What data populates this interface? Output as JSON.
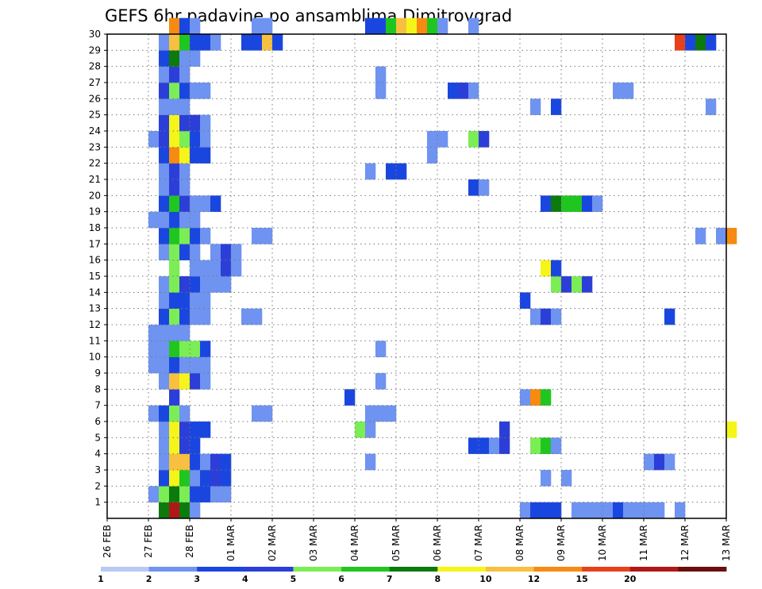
{
  "chart_data": {
    "type": "heatmap",
    "title": "GEFS 6hr padavine po ansamblima Dimitrovgrad",
    "xlabel": "",
    "ylabel": "",
    "x_tick_labels": [
      "26 FEB",
      "27 FEB",
      "28 FEB",
      "01 MAR",
      "02 MAR",
      "03 MAR",
      "04 MAR",
      "05 MAR",
      "06 MAR",
      "07 MAR",
      "08 MAR",
      "09 MAR",
      "10 MAR",
      "11 MAR",
      "12 MAR",
      "13 MAR"
    ],
    "x_range_days": [
      0,
      15
    ],
    "y_tick_labels": [
      "1",
      "2",
      "3",
      "4",
      "5",
      "6",
      "7",
      "8",
      "9",
      "10",
      "11",
      "12",
      "13",
      "14",
      "15",
      "16",
      "17",
      "18",
      "19",
      "20",
      "21",
      "22",
      "23",
      "24",
      "25",
      "26",
      "27",
      "28",
      "29",
      "30"
    ],
    "y_range": [
      0,
      30
    ],
    "grid": true,
    "legend_placement": "bottom",
    "levels": [
      "1",
      "2",
      "3",
      "4",
      "5",
      "6",
      "7",
      "8",
      "10",
      "12",
      "15",
      "20"
    ],
    "level_colors": [
      "#b9c8f5",
      "#6f93f0",
      "#1a46e0",
      "#2c3ed8",
      "#7bee55",
      "#20c620",
      "#0d7a0d",
      "#f5f51a",
      "#f7c040",
      "#f78a10",
      "#e8401a",
      "#b01818",
      "#6a0e0e"
    ],
    "cells": [
      [
        1.25,
        0,
        6
      ],
      [
        1.5,
        0,
        11
      ],
      [
        1.75,
        0,
        6
      ],
      [
        2.0,
        0,
        1
      ],
      [
        10.0,
        0,
        1
      ],
      [
        10.25,
        0,
        2
      ],
      [
        10.5,
        0,
        2
      ],
      [
        10.75,
        0,
        2
      ],
      [
        11.25,
        0,
        1
      ],
      [
        11.5,
        0,
        1
      ],
      [
        11.75,
        0,
        1
      ],
      [
        12.0,
        0,
        1
      ],
      [
        12.25,
        0,
        2
      ],
      [
        12.5,
        0,
        1
      ],
      [
        12.75,
        0,
        1
      ],
      [
        13.0,
        0,
        1
      ],
      [
        13.25,
        0,
        1
      ],
      [
        13.75,
        0,
        1
      ],
      [
        1.0,
        1,
        1
      ],
      [
        1.25,
        1,
        4
      ],
      [
        1.5,
        1,
        6
      ],
      [
        1.75,
        1,
        4
      ],
      [
        2.0,
        1,
        2
      ],
      [
        2.25,
        1,
        2
      ],
      [
        2.5,
        1,
        1
      ],
      [
        2.75,
        1,
        1
      ],
      [
        1.25,
        2,
        2
      ],
      [
        1.5,
        2,
        7
      ],
      [
        1.75,
        2,
        5
      ],
      [
        2.0,
        2,
        1
      ],
      [
        2.25,
        2,
        2
      ],
      [
        2.5,
        2,
        3
      ],
      [
        2.75,
        2,
        2
      ],
      [
        10.5,
        2,
        1
      ],
      [
        11.0,
        2,
        1
      ],
      [
        1.25,
        3,
        1
      ],
      [
        1.5,
        3,
        8
      ],
      [
        1.75,
        3,
        8
      ],
      [
        2.0,
        3,
        2
      ],
      [
        2.25,
        3,
        1
      ],
      [
        2.5,
        3,
        3
      ],
      [
        2.75,
        3,
        2
      ],
      [
        6.25,
        3,
        1
      ],
      [
        13.0,
        3,
        1
      ],
      [
        13.25,
        3,
        3
      ],
      [
        13.5,
        3,
        1
      ],
      [
        1.25,
        4,
        1
      ],
      [
        1.5,
        4,
        7
      ],
      [
        1.75,
        4,
        3
      ],
      [
        2.0,
        4,
        2
      ],
      [
        8.75,
        4,
        2
      ],
      [
        9.0,
        4,
        2
      ],
      [
        9.25,
        4,
        1
      ],
      [
        9.5,
        4,
        3
      ],
      [
        10.25,
        4,
        4
      ],
      [
        10.5,
        4,
        5
      ],
      [
        10.75,
        4,
        1
      ],
      [
        1.25,
        5,
        1
      ],
      [
        1.5,
        5,
        7
      ],
      [
        1.75,
        5,
        3
      ],
      [
        2.0,
        5,
        2
      ],
      [
        2.25,
        5,
        2
      ],
      [
        6.0,
        5,
        4
      ],
      [
        6.25,
        5,
        1
      ],
      [
        9.5,
        5,
        3
      ],
      [
        15.0,
        5,
        7
      ],
      [
        1.0,
        6,
        1
      ],
      [
        1.25,
        6,
        2
      ],
      [
        1.5,
        6,
        4
      ],
      [
        1.75,
        6,
        1
      ],
      [
        3.5,
        6,
        1
      ],
      [
        3.75,
        6,
        1
      ],
      [
        6.25,
        6,
        1
      ],
      [
        6.5,
        6,
        1
      ],
      [
        6.75,
        6,
        1
      ],
      [
        1.5,
        7,
        3
      ],
      [
        5.75,
        7,
        2
      ],
      [
        10.0,
        7,
        1
      ],
      [
        10.25,
        7,
        9
      ],
      [
        10.5,
        7,
        5
      ],
      [
        1.25,
        8,
        1
      ],
      [
        1.5,
        8,
        8
      ],
      [
        1.75,
        8,
        7
      ],
      [
        2.0,
        8,
        3
      ],
      [
        2.25,
        8,
        1
      ],
      [
        6.5,
        8,
        1
      ],
      [
        1.0,
        9,
        1
      ],
      [
        1.25,
        9,
        1
      ],
      [
        1.5,
        9,
        2
      ],
      [
        1.75,
        9,
        1
      ],
      [
        2.0,
        9,
        1
      ],
      [
        2.25,
        9,
        1
      ],
      [
        1.0,
        10,
        1
      ],
      [
        1.25,
        10,
        1
      ],
      [
        1.5,
        10,
        5
      ],
      [
        1.75,
        10,
        4
      ],
      [
        2.0,
        10,
        4
      ],
      [
        2.25,
        10,
        2
      ],
      [
        6.5,
        10,
        1
      ],
      [
        1.0,
        11,
        1
      ],
      [
        1.25,
        11,
        1
      ],
      [
        1.5,
        11,
        1
      ],
      [
        1.75,
        11,
        1
      ],
      [
        1.25,
        12,
        2
      ],
      [
        1.5,
        12,
        4
      ],
      [
        1.75,
        12,
        2
      ],
      [
        2.0,
        12,
        1
      ],
      [
        2.25,
        12,
        1
      ],
      [
        3.25,
        12,
        1
      ],
      [
        3.5,
        12,
        1
      ],
      [
        10.25,
        12,
        1
      ],
      [
        10.5,
        12,
        3
      ],
      [
        10.75,
        12,
        1
      ],
      [
        13.5,
        12,
        2
      ],
      [
        1.25,
        13,
        1
      ],
      [
        1.5,
        13,
        2
      ],
      [
        1.75,
        13,
        2
      ],
      [
        2.0,
        13,
        1
      ],
      [
        2.25,
        13,
        1
      ],
      [
        10.0,
        13,
        2
      ],
      [
        1.25,
        14,
        1
      ],
      [
        1.5,
        14,
        4
      ],
      [
        1.75,
        14,
        3
      ],
      [
        2.0,
        14,
        2
      ],
      [
        2.25,
        14,
        1
      ],
      [
        2.5,
        14,
        1
      ],
      [
        2.75,
        14,
        1
      ],
      [
        10.75,
        14,
        4
      ],
      [
        11.0,
        14,
        3
      ],
      [
        11.25,
        14,
        4
      ],
      [
        11.5,
        14,
        3
      ],
      [
        1.5,
        15,
        4
      ],
      [
        2.0,
        15,
        1
      ],
      [
        2.25,
        15,
        1
      ],
      [
        2.5,
        15,
        1
      ],
      [
        2.75,
        15,
        3
      ],
      [
        3.0,
        15,
        1
      ],
      [
        10.5,
        15,
        7
      ],
      [
        10.75,
        15,
        2
      ],
      [
        1.25,
        16,
        1
      ],
      [
        1.5,
        16,
        4
      ],
      [
        1.75,
        16,
        2
      ],
      [
        2.0,
        16,
        1
      ],
      [
        2.5,
        16,
        1
      ],
      [
        2.75,
        16,
        3
      ],
      [
        3.0,
        16,
        1
      ],
      [
        1.25,
        17,
        2
      ],
      [
        1.5,
        17,
        5
      ],
      [
        1.75,
        17,
        4
      ],
      [
        2.0,
        17,
        2
      ],
      [
        2.25,
        17,
        1
      ],
      [
        3.5,
        17,
        1
      ],
      [
        3.75,
        17,
        1
      ],
      [
        14.25,
        17,
        1
      ],
      [
        14.75,
        17,
        1
      ],
      [
        15.0,
        17,
        9
      ],
      [
        1.0,
        18,
        1
      ],
      [
        1.25,
        18,
        1
      ],
      [
        1.5,
        18,
        2
      ],
      [
        1.75,
        18,
        1
      ],
      [
        2.0,
        18,
        1
      ],
      [
        1.25,
        19,
        2
      ],
      [
        1.5,
        19,
        5
      ],
      [
        1.75,
        19,
        3
      ],
      [
        2.0,
        19,
        1
      ],
      [
        2.25,
        19,
        1
      ],
      [
        2.5,
        19,
        2
      ],
      [
        10.5,
        19,
        2
      ],
      [
        10.75,
        19,
        6
      ],
      [
        11.0,
        19,
        5
      ],
      [
        11.25,
        19,
        5
      ],
      [
        11.5,
        19,
        2
      ],
      [
        11.75,
        19,
        1
      ],
      [
        1.25,
        20,
        1
      ],
      [
        1.5,
        20,
        3
      ],
      [
        1.75,
        20,
        1
      ],
      [
        8.75,
        20,
        2
      ],
      [
        9.0,
        20,
        1
      ],
      [
        1.25,
        21,
        1
      ],
      [
        1.5,
        21,
        3
      ],
      [
        1.75,
        21,
        1
      ],
      [
        6.25,
        21,
        1
      ],
      [
        6.75,
        21,
        2
      ],
      [
        7.0,
        21,
        2
      ],
      [
        1.25,
        22,
        2
      ],
      [
        1.5,
        22,
        9
      ],
      [
        1.75,
        22,
        7
      ],
      [
        2.0,
        22,
        2
      ],
      [
        2.25,
        22,
        2
      ],
      [
        7.75,
        22,
        1
      ],
      [
        1.0,
        23,
        1
      ],
      [
        1.25,
        23,
        3
      ],
      [
        1.5,
        23,
        7
      ],
      [
        1.75,
        23,
        4
      ],
      [
        2.0,
        23,
        2
      ],
      [
        2.25,
        23,
        1
      ],
      [
        7.75,
        23,
        1
      ],
      [
        8.0,
        23,
        1
      ],
      [
        8.75,
        23,
        4
      ],
      [
        9.0,
        23,
        3
      ],
      [
        1.25,
        24,
        3
      ],
      [
        1.5,
        24,
        7
      ],
      [
        1.75,
        24,
        3
      ],
      [
        2.0,
        24,
        3
      ],
      [
        2.25,
        24,
        1
      ],
      [
        1.25,
        25,
        1
      ],
      [
        1.5,
        25,
        1
      ],
      [
        1.75,
        25,
        1
      ],
      [
        10.25,
        25,
        1
      ],
      [
        10.75,
        25,
        2
      ],
      [
        14.5,
        25,
        1
      ],
      [
        1.25,
        26,
        3
      ],
      [
        1.5,
        26,
        4
      ],
      [
        1.75,
        26,
        2
      ],
      [
        2.0,
        26,
        1
      ],
      [
        2.25,
        26,
        1
      ],
      [
        6.5,
        26,
        1
      ],
      [
        8.25,
        26,
        2
      ],
      [
        8.5,
        26,
        3
      ],
      [
        8.75,
        26,
        1
      ],
      [
        12.25,
        26,
        1
      ],
      [
        12.5,
        26,
        1
      ],
      [
        1.25,
        27,
        1
      ],
      [
        1.5,
        27,
        3
      ],
      [
        1.75,
        27,
        1
      ],
      [
        6.5,
        27,
        1
      ],
      [
        1.25,
        28,
        2
      ],
      [
        1.5,
        28,
        6
      ],
      [
        1.75,
        28,
        1
      ],
      [
        2.0,
        28,
        1
      ],
      [
        1.25,
        29,
        1
      ],
      [
        1.5,
        29,
        8
      ],
      [
        1.75,
        29,
        5
      ],
      [
        2.0,
        29,
        2
      ],
      [
        2.25,
        29,
        2
      ],
      [
        2.5,
        29,
        1
      ],
      [
        3.25,
        29,
        2
      ],
      [
        3.5,
        29,
        2
      ],
      [
        3.75,
        29,
        8
      ],
      [
        4.0,
        29,
        2
      ],
      [
        13.75,
        29,
        10
      ],
      [
        14.0,
        29,
        2
      ],
      [
        14.25,
        29,
        6
      ],
      [
        14.5,
        29,
        2
      ],
      [
        1.5,
        30,
        9
      ],
      [
        1.75,
        30,
        2
      ],
      [
        2.0,
        30,
        1
      ],
      [
        3.5,
        30,
        1
      ],
      [
        3.75,
        30,
        1
      ],
      [
        6.25,
        30,
        2
      ],
      [
        6.5,
        30,
        2
      ],
      [
        6.75,
        30,
        5
      ],
      [
        7.0,
        30,
        8
      ],
      [
        7.25,
        30,
        7
      ],
      [
        7.5,
        30,
        9
      ],
      [
        7.75,
        30,
        5
      ],
      [
        8.0,
        30,
        1
      ],
      [
        8.75,
        30,
        1
      ]
    ]
  }
}
